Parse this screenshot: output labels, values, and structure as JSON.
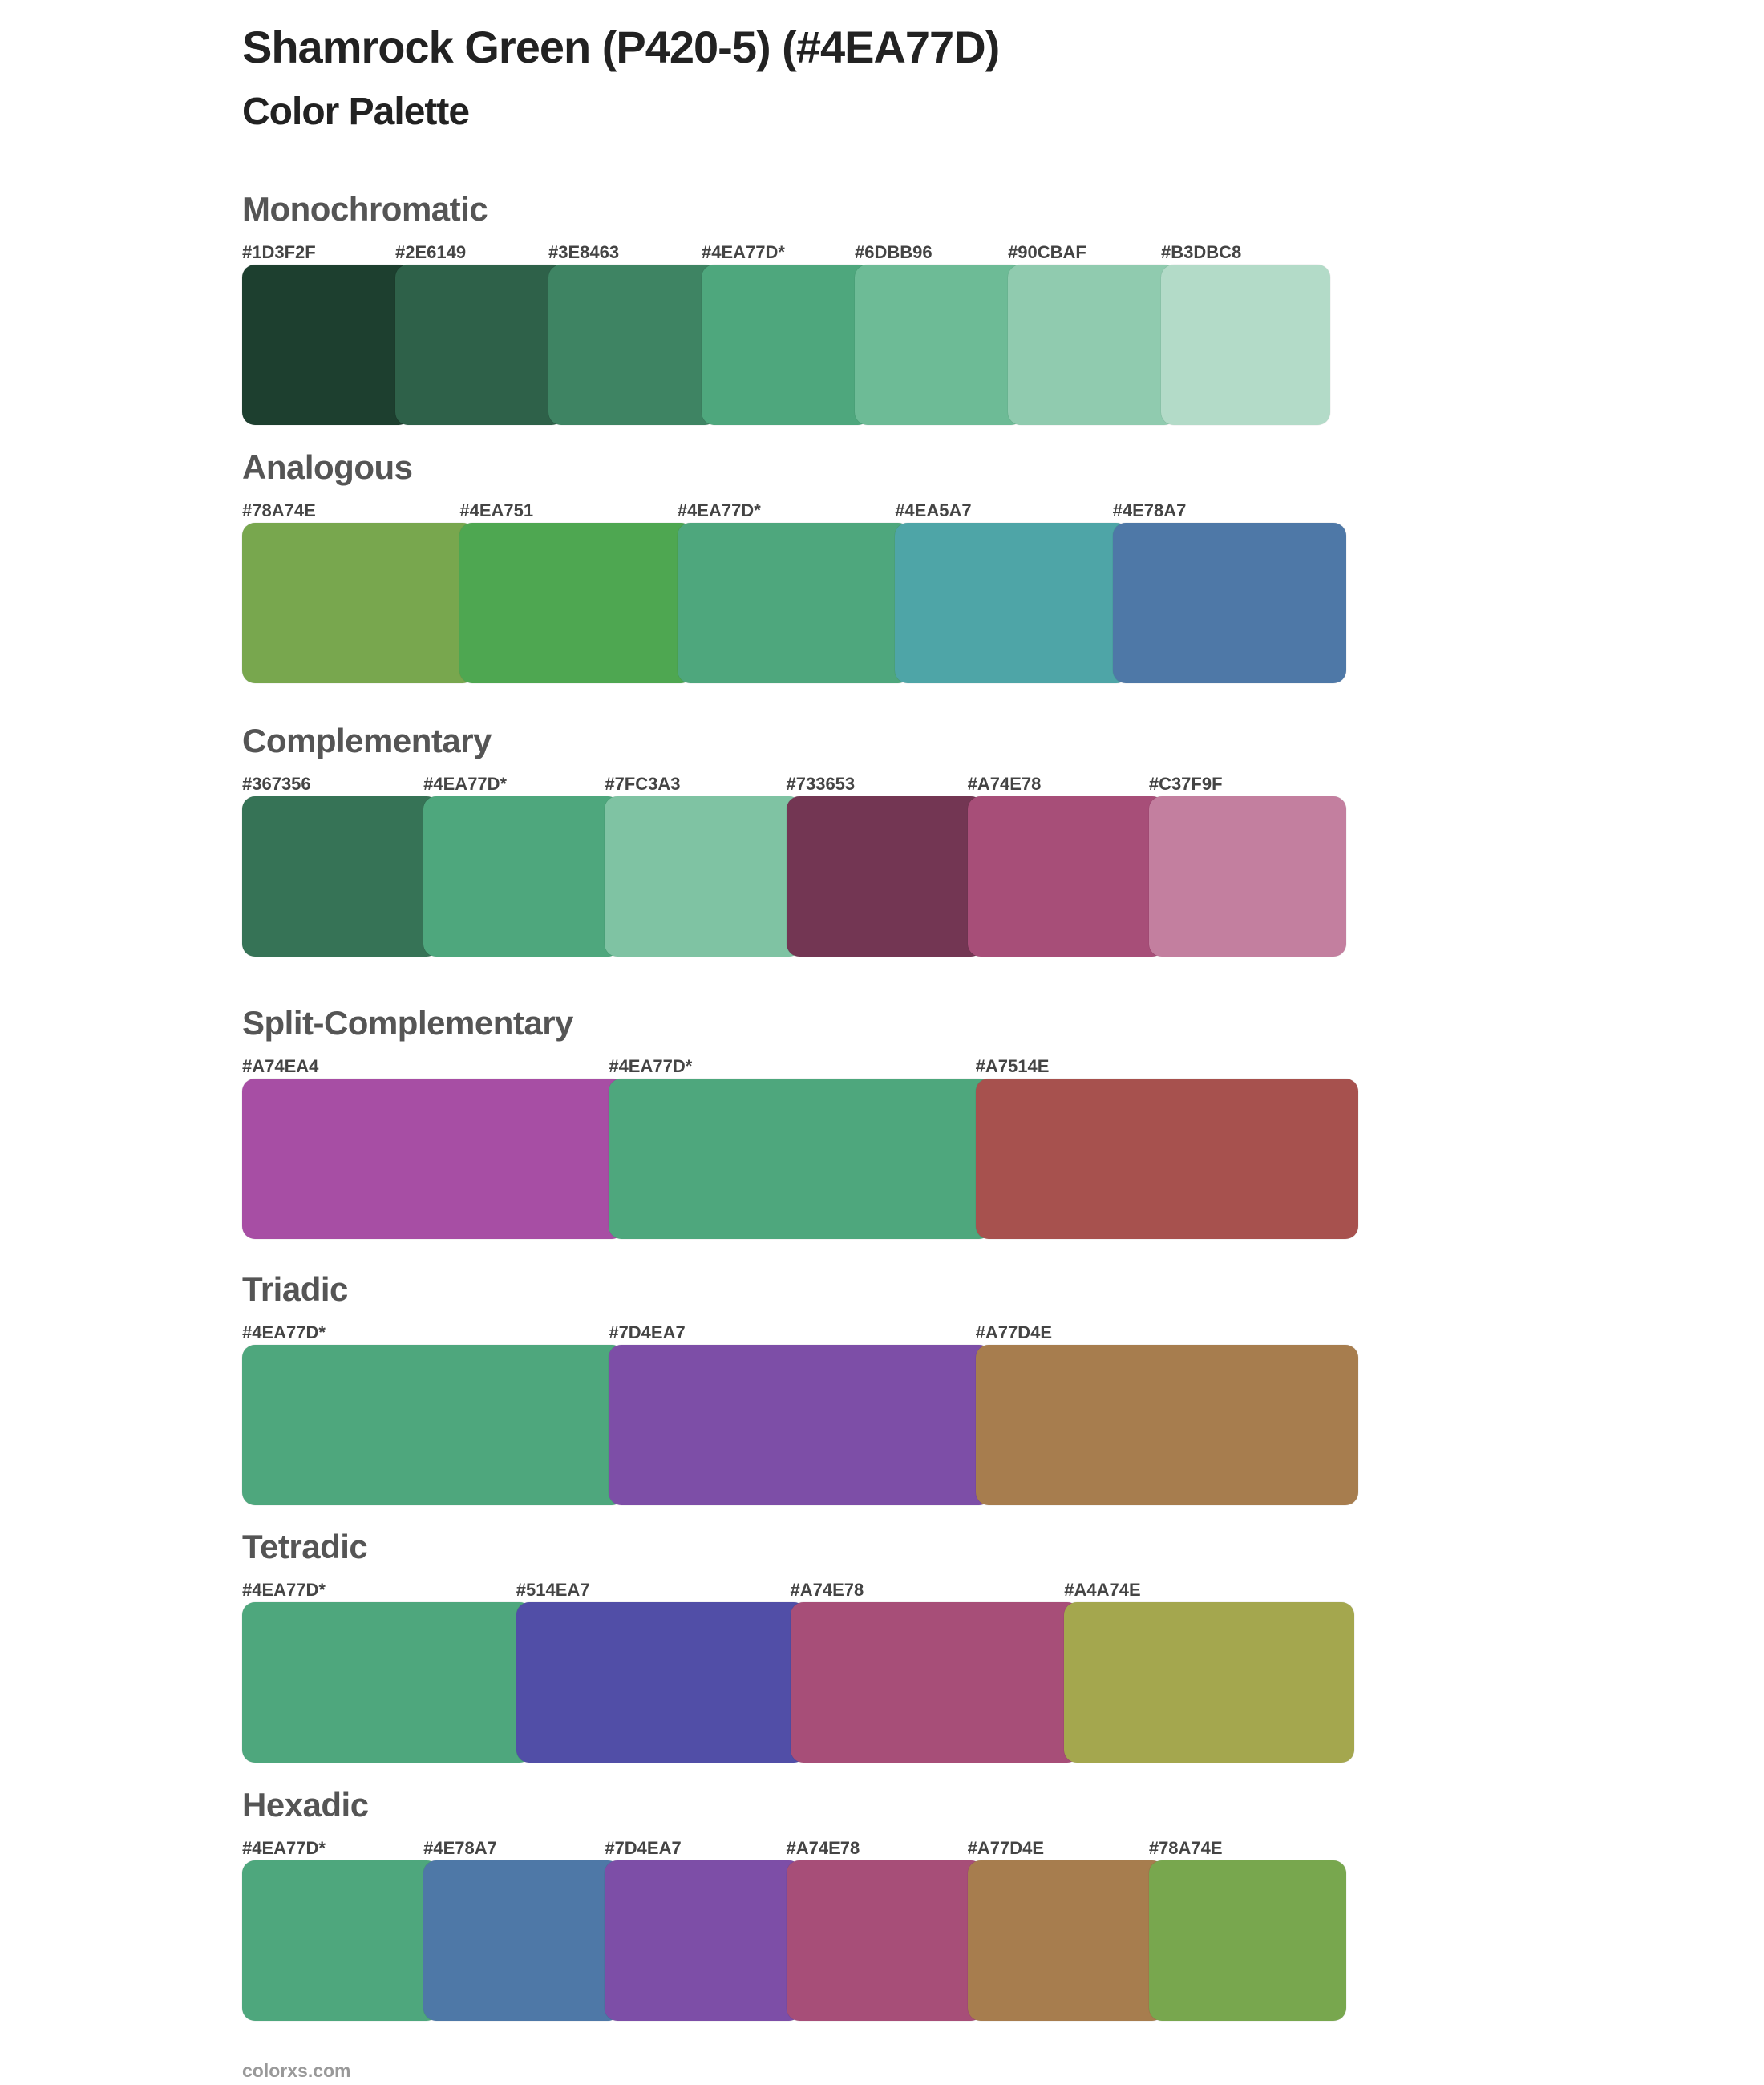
{
  "header": {
    "title": "Shamrock Green (P420-5) (#4EA77D)",
    "subtitle": "Color Palette"
  },
  "sections": [
    {
      "name": "Monochromatic",
      "colors": [
        {
          "label": "#1D3F2F",
          "hex": "#1D3F2F"
        },
        {
          "label": "#2E6149",
          "hex": "#2E6149"
        },
        {
          "label": "#3E8463",
          "hex": "#3E8463"
        },
        {
          "label": "#4EA77D*",
          "hex": "#4EA77D"
        },
        {
          "label": "#6DBB96",
          "hex": "#6DBB96"
        },
        {
          "label": "#90CBAF",
          "hex": "#90CBAF"
        },
        {
          "label": "#B3DBC8",
          "hex": "#B3DBC8"
        }
      ]
    },
    {
      "name": "Analogous",
      "colors": [
        {
          "label": "#78A74E",
          "hex": "#78A74E"
        },
        {
          "label": "#4EA751",
          "hex": "#4EA751"
        },
        {
          "label": "#4EA77D*",
          "hex": "#4EA77D"
        },
        {
          "label": "#4EA5A7",
          "hex": "#4EA5A7"
        },
        {
          "label": "#4E78A7",
          "hex": "#4E78A7"
        }
      ]
    },
    {
      "name": "Complementary",
      "colors": [
        {
          "label": "#367356",
          "hex": "#367356"
        },
        {
          "label": "#4EA77D*",
          "hex": "#4EA77D"
        },
        {
          "label": "#7FC3A3",
          "hex": "#7FC3A3"
        },
        {
          "label": "#733653",
          "hex": "#733653"
        },
        {
          "label": "#A74E78",
          "hex": "#A74E78"
        },
        {
          "label": "#C37F9F",
          "hex": "#C37F9F"
        }
      ]
    },
    {
      "name": "Split-Complementary",
      "colors": [
        {
          "label": "#A74EA4",
          "hex": "#A74EA4"
        },
        {
          "label": "#4EA77D*",
          "hex": "#4EA77D"
        },
        {
          "label": "#A7514E",
          "hex": "#A7514E"
        }
      ]
    },
    {
      "name": "Triadic",
      "colors": [
        {
          "label": "#4EA77D*",
          "hex": "#4EA77D"
        },
        {
          "label": "#7D4EA7",
          "hex": "#7D4EA7"
        },
        {
          "label": "#A77D4E",
          "hex": "#A77D4E"
        }
      ]
    },
    {
      "name": "Tetradic",
      "colors": [
        {
          "label": "#4EA77D*",
          "hex": "#4EA77D"
        },
        {
          "label": "#514EA7",
          "hex": "#514EA7"
        },
        {
          "label": "#A74E78",
          "hex": "#A74E78"
        },
        {
          "label": "#A4A74E",
          "hex": "#A4A74E"
        }
      ]
    },
    {
      "name": "Hexadic",
      "colors": [
        {
          "label": "#4EA77D*",
          "hex": "#4EA77D"
        },
        {
          "label": "#4E78A7",
          "hex": "#4E78A7"
        },
        {
          "label": "#7D4EA7",
          "hex": "#7D4EA7"
        },
        {
          "label": "#A74E78",
          "hex": "#A74E78"
        },
        {
          "label": "#A77D4E",
          "hex": "#A77D4E"
        },
        {
          "label": "#78A74E",
          "hex": "#78A74E"
        }
      ]
    }
  ],
  "footer": {
    "site": "colorxs.com"
  }
}
